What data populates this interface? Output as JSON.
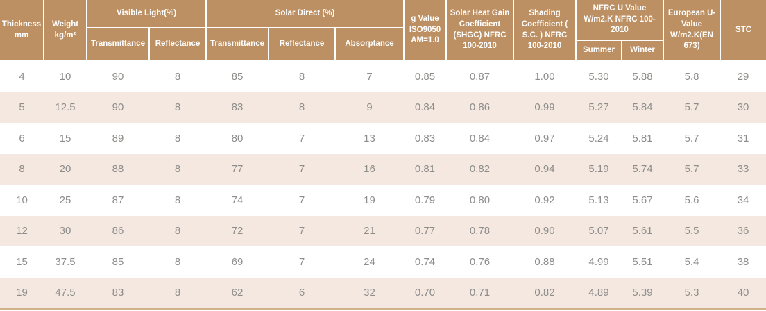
{
  "colors": {
    "header_bg": "#bd9064",
    "header_text": "#ffffff",
    "row_stripe": "#f4e8e1",
    "row_text": "#8e8d8b",
    "bottom_border": "#d2b28c",
    "page_bg": "#ffffff"
  },
  "chart_data": {
    "type": "table",
    "header": {
      "thickness": "Thickness mm",
      "weight": "Weight kg/m²",
      "visible_light_group": "Visible Light(%)",
      "vl_transmittance": "Transmittance",
      "vl_reflectance": "Reflectance",
      "solar_direct_group": "Solar Direct (%)",
      "sd_transmittance": "Transmittance",
      "sd_reflectance": "Reflectance",
      "sd_absorptance": "Absorptance",
      "g_value": "g Value ISO9050 AM=1.0",
      "shgc": "Solar Heat Gain Coefficient (SHGC) NFRC 100-2010",
      "shading": "Shading Coefficient ( S.C. ) NFRC 100-2010",
      "nfrc_u_group": "NFRC U Value W/m2.K NFRC 100-2010",
      "summer": "Summer",
      "winter": "Winter",
      "european_u": "European U-Value W/m2.K(EN 673)",
      "stc": "STC"
    },
    "column_keys": [
      "thickness_mm",
      "weight_kg_m2",
      "visible_light_transmittance_pct",
      "visible_light_reflectance_pct",
      "solar_direct_transmittance_pct",
      "solar_direct_reflectance_pct",
      "solar_direct_absorptance_pct",
      "g_value_iso9050",
      "shgc_nfrc_100_2010",
      "shading_coefficient_nfrc_100_2010",
      "nfrc_u_value_summer",
      "nfrc_u_value_winter",
      "european_u_value_en673",
      "stc"
    ],
    "rows": [
      [
        "4",
        "10",
        "90",
        "8",
        "85",
        "8",
        "7",
        "0.85",
        "0.87",
        "1.00",
        "5.30",
        "5.88",
        "5.8",
        "29"
      ],
      [
        "5",
        "12.5",
        "90",
        "8",
        "83",
        "8",
        "9",
        "0.84",
        "0.86",
        "0.99",
        "5.27",
        "5.84",
        "5.7",
        "30"
      ],
      [
        "6",
        "15",
        "89",
        "8",
        "80",
        "7",
        "13",
        "0.83",
        "0.84",
        "0.97",
        "5.24",
        "5.81",
        "5.7",
        "31"
      ],
      [
        "8",
        "20",
        "88",
        "8",
        "77",
        "7",
        "16",
        "0.81",
        "0.82",
        "0.94",
        "5.19",
        "5.74",
        "5.7",
        "33"
      ],
      [
        "10",
        "25",
        "87",
        "8",
        "74",
        "7",
        "19",
        "0.79",
        "0.80",
        "0.92",
        "5.13",
        "5.67",
        "5.6",
        "34"
      ],
      [
        "12",
        "30",
        "86",
        "8",
        "72",
        "7",
        "21",
        "0.77",
        "0.78",
        "0.90",
        "5.07",
        "5.61",
        "5.5",
        "36"
      ],
      [
        "15",
        "37.5",
        "85",
        "8",
        "69",
        "7",
        "24",
        "0.74",
        "0.76",
        "0.88",
        "4.99",
        "5.51",
        "5.4",
        "38"
      ],
      [
        "19",
        "47.5",
        "83",
        "8",
        "62",
        "6",
        "32",
        "0.70",
        "0.71",
        "0.82",
        "4.89",
        "5.39",
        "5.3",
        "40"
      ]
    ]
  }
}
